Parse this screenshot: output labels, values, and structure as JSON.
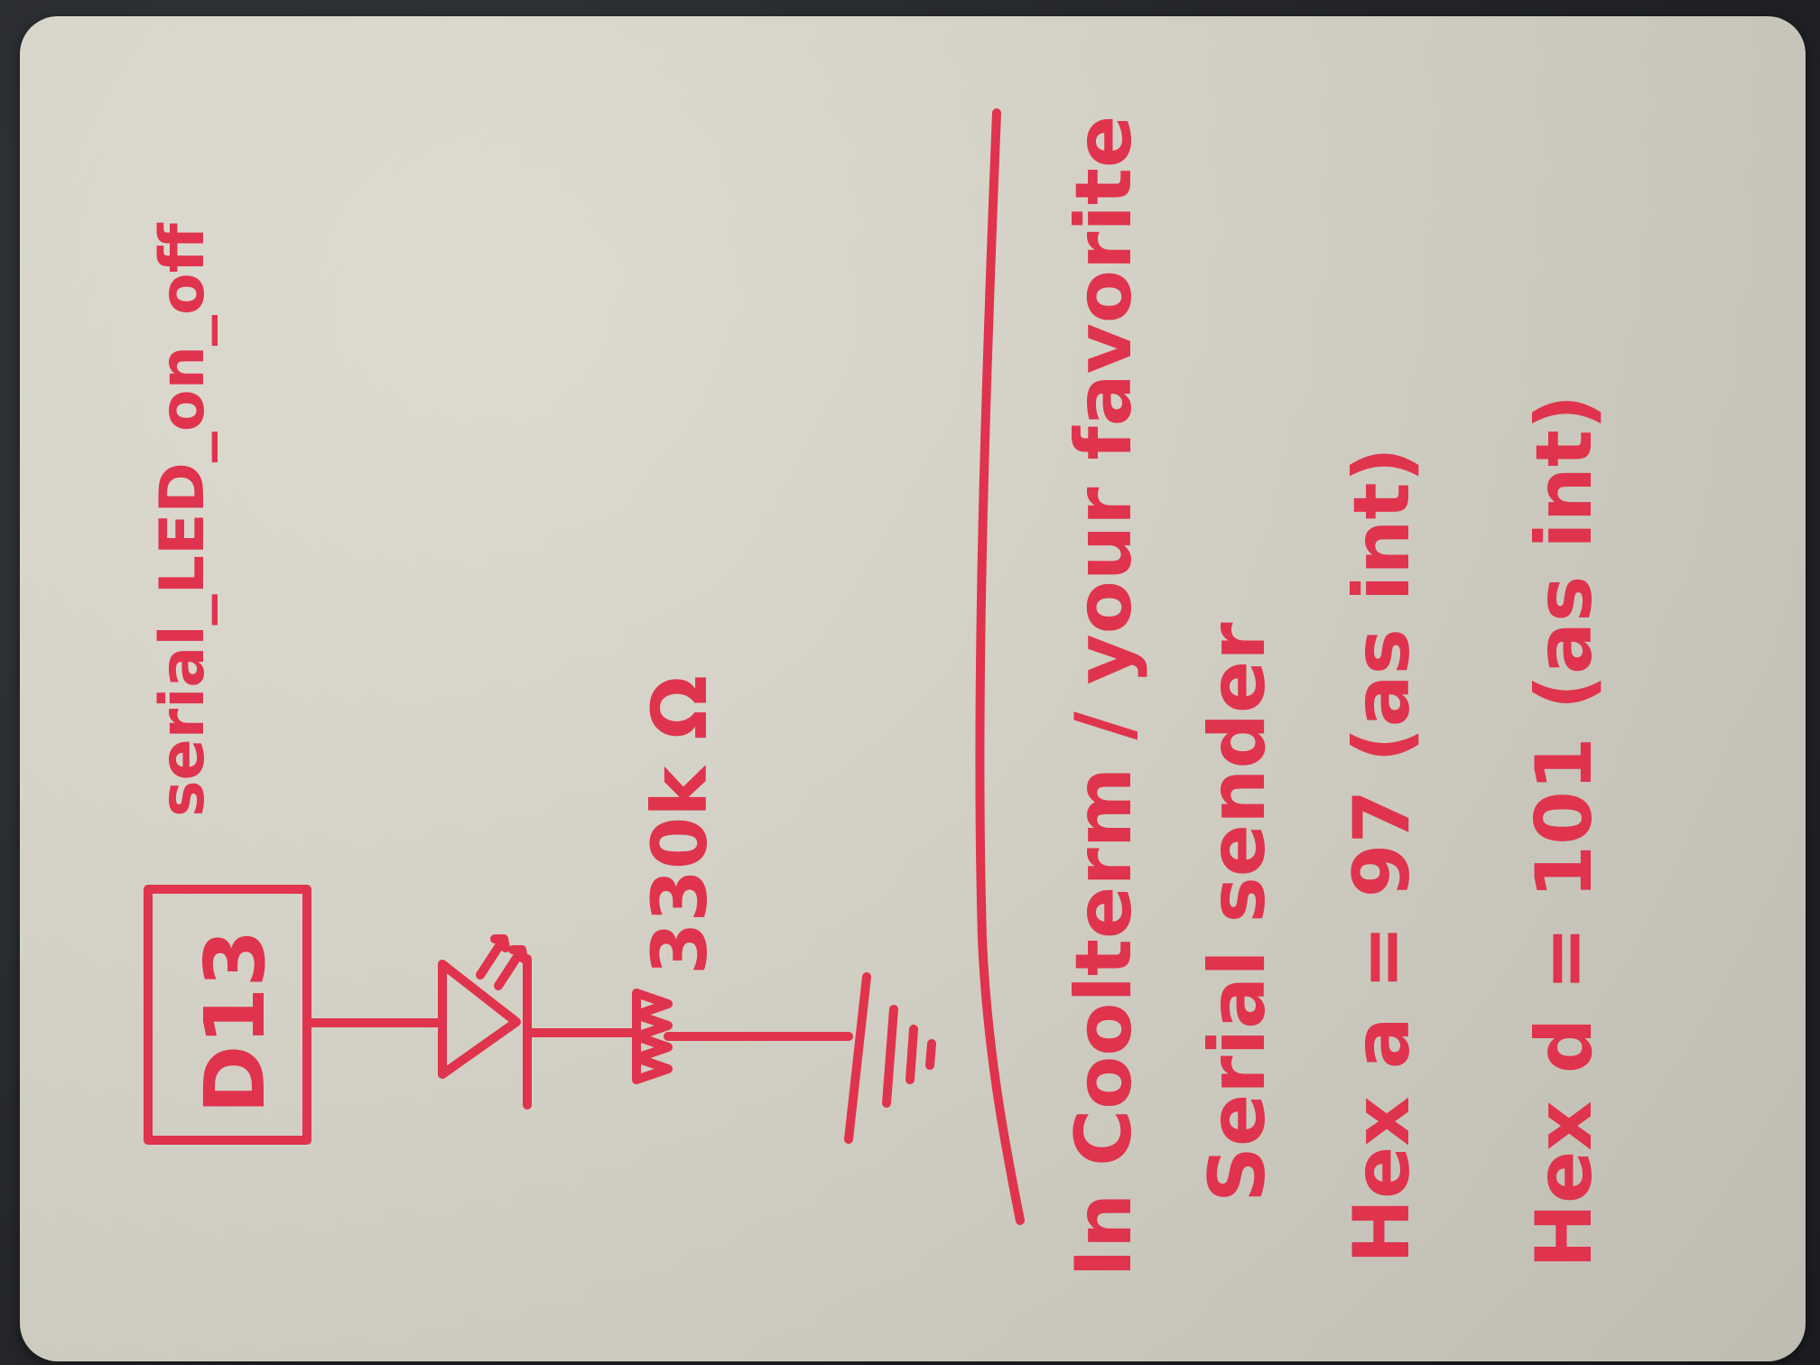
{
  "title": "serial_LED_on_off",
  "circuit": {
    "pin_label": "D13",
    "resistor_label": "330k Ω"
  },
  "instructions": {
    "line1": "In Coolterm / your favorite",
    "line2": "Serial sender",
    "line3": "Hex a = 97 (as int)",
    "line4": "Hex d = 101 (as int)"
  },
  "ink_color": "#e0334e"
}
